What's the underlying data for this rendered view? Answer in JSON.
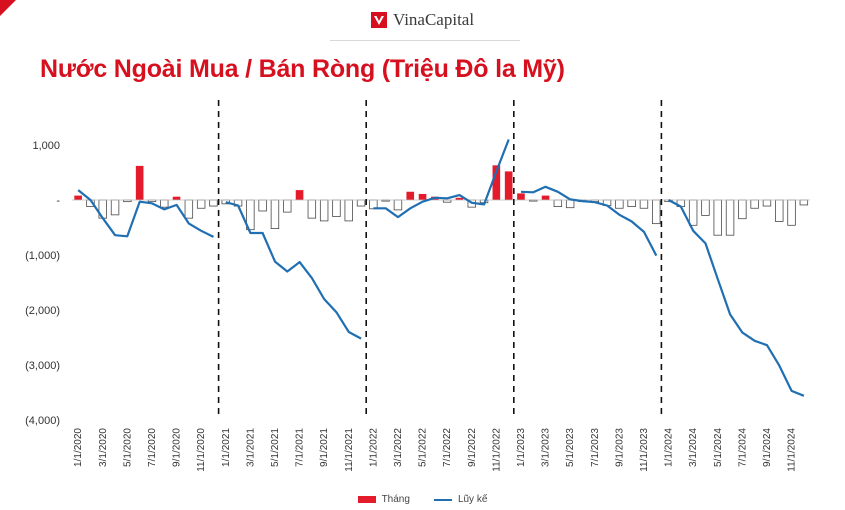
{
  "brand": {
    "name": "VinaCapital",
    "logo_icon": "vinacapital-logo-icon",
    "accent": "#d6101e"
  },
  "title": "Nước Ngoài Mua / Bán Ròng (Triệu Đô la Mỹ)",
  "chart_data": {
    "type": "bar",
    "categories": [
      "1/1/2020",
      "2/1/2020",
      "3/1/2020",
      "4/1/2020",
      "5/1/2020",
      "6/1/2020",
      "7/1/2020",
      "8/1/2020",
      "9/1/2020",
      "10/1/2020",
      "11/1/2020",
      "12/1/2020",
      "1/1/2021",
      "2/1/2021",
      "3/1/2021",
      "4/1/2021",
      "5/1/2021",
      "6/1/2021",
      "7/1/2021",
      "8/1/2021",
      "9/1/2021",
      "10/1/2021",
      "11/1/2021",
      "12/1/2021",
      "1/1/2022",
      "2/1/2022",
      "3/1/2022",
      "4/1/2022",
      "5/1/2022",
      "6/1/2022",
      "7/1/2022",
      "8/1/2022",
      "9/1/2022",
      "10/1/2022",
      "11/1/2022",
      "12/1/2022",
      "1/1/2023",
      "2/1/2023",
      "3/1/2023",
      "4/1/2023",
      "5/1/2023",
      "6/1/2023",
      "7/1/2023",
      "8/1/2023",
      "9/1/2023",
      "10/1/2023",
      "11/1/2023",
      "12/1/2023",
      "1/1/2024",
      "2/1/2024",
      "3/1/2024",
      "4/1/2024",
      "5/1/2024",
      "6/1/2024",
      "7/1/2024",
      "8/1/2024",
      "9/1/2024",
      "10/1/2024",
      "11/1/2024",
      "12/1/2024"
    ],
    "tick_labels": [
      "1/1/2020",
      "3/1/2020",
      "5/1/2020",
      "7/1/2020",
      "9/1/2020",
      "11/1/2020",
      "1/1/2021",
      "3/1/2021",
      "5/1/2021",
      "7/1/2021",
      "9/1/2021",
      "11/1/2021",
      "1/1/2022",
      "3/1/2022",
      "5/1/2022",
      "7/1/2022",
      "9/1/2022",
      "11/1/2022",
      "1/1/2023",
      "3/1/2023",
      "5/1/2023",
      "7/1/2023",
      "9/1/2023",
      "11/1/2023",
      "1/1/2024",
      "3/1/2024",
      "5/1/2024",
      "7/1/2024",
      "9/1/2024",
      "11/1/2024"
    ],
    "series": [
      {
        "name": "Tháng",
        "type": "bar",
        "color": "#e31b2b",
        "values": [
          80,
          -120,
          -330,
          -270,
          -30,
          620,
          -30,
          -130,
          60,
          -330,
          -150,
          -110,
          -70,
          -110,
          -540,
          -200,
          -520,
          -220,
          180,
          -330,
          -380,
          -300,
          -380,
          -110,
          -160,
          -20,
          -180,
          150,
          110,
          60,
          -40,
          40,
          -130,
          -50,
          630,
          520,
          120,
          -20,
          80,
          -120,
          -140,
          -30,
          -30,
          -100,
          -150,
          -120,
          -150,
          -430,
          -30,
          -120,
          -460,
          -280,
          -640,
          -640,
          -340,
          -150,
          -110,
          -390,
          -460,
          -90
        ]
      },
      {
        "name": "Lũy kế",
        "type": "line",
        "color": "#1f6fb2",
        "values": [
          180,
          0,
          -330,
          -640,
          -660,
          -30,
          -60,
          -170,
          -90,
          -430,
          -560,
          -670,
          -40,
          -100,
          -600,
          -600,
          -1120,
          -1300,
          -1130,
          -1420,
          -1800,
          -2040,
          -2400,
          -2520,
          -150,
          -150,
          -310,
          -150,
          -30,
          40,
          30,
          90,
          -50,
          -80,
          520,
          1100,
          150,
          140,
          240,
          150,
          10,
          -20,
          -40,
          -100,
          -270,
          -390,
          -580,
          -1010,
          0,
          -120,
          -560,
          -790,
          -1440,
          -2080,
          -2410,
          -2560,
          -2640,
          -3010,
          -3470,
          -3560
        ]
      }
    ],
    "ylim": [
      -4000,
      1000
    ],
    "yticks": [
      1000,
      0,
      -1000,
      -2000,
      -3000,
      -4000
    ],
    "ytick_labels": [
      "1,000",
      "-",
      "(1,000)",
      "(2,000)",
      "(3,000)",
      "(4,000)"
    ],
    "xlabel": "",
    "ylabel": "",
    "year_separators": [
      "1/1/2021",
      "1/1/2022",
      "1/1/2023",
      "1/1/2024"
    ],
    "grid": false,
    "legend_position": "bottom"
  }
}
